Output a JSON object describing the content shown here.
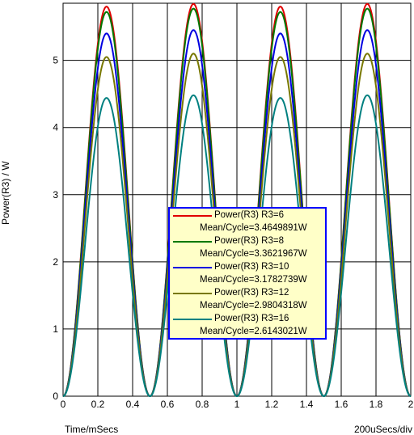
{
  "chart_data": {
    "type": "line",
    "xlabel": "Time/mSecs",
    "x_division": "200uSecs/div",
    "ylabel": "Power(R3) / W",
    "xlim": [
      0,
      2
    ],
    "ylim": [
      0,
      5.85
    ],
    "x_ticks": [
      "0",
      "0.2",
      "0.4",
      "0.6",
      "0.8",
      "1",
      "1.2",
      "1.4",
      "1.6",
      "1.8",
      "2"
    ],
    "y_ticks": [
      "0",
      "1",
      "2",
      "3",
      "4",
      "5"
    ],
    "grid": true,
    "legend_position": "center",
    "series": [
      {
        "name": "Power(R3) R3=6",
        "mean_label": "Mean/Cycle=3.4649891W",
        "color": "#e00000",
        "peaks": [
          5.8,
          5.84,
          5.8,
          5.84
        ]
      },
      {
        "name": "Power(R3) R3=8",
        "mean_label": "Mean/Cycle=3.3621967W",
        "color": "#007800",
        "peaks": [
          5.72,
          5.77,
          5.72,
          5.77
        ]
      },
      {
        "name": "Power(R3) R3=10",
        "mean_label": "Mean/Cycle=3.1782739W",
        "color": "#0000e0",
        "peaks": [
          5.4,
          5.45,
          5.4,
          5.45
        ]
      },
      {
        "name": "Power(R3) R3=12",
        "mean_label": "Mean/Cycle=2.9804318W",
        "color": "#787800",
        "peaks": [
          5.05,
          5.1,
          5.05,
          5.1
        ]
      },
      {
        "name": "Power(R3) R3=16",
        "mean_label": "Mean/Cycle=2.6143021W",
        "color": "#008080",
        "peaks": [
          4.44,
          4.48,
          4.44,
          4.48
        ]
      }
    ],
    "period_ms": 0.5
  }
}
